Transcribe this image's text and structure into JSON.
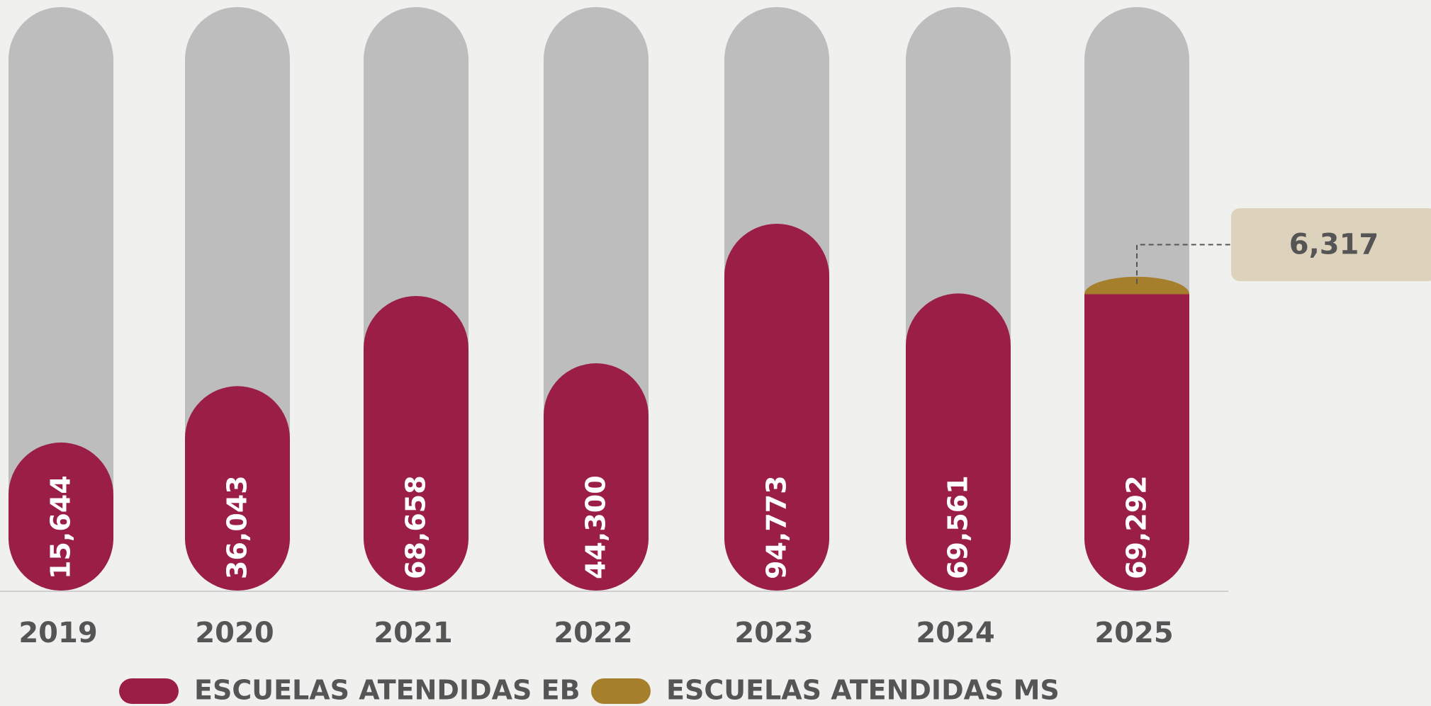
{
  "chart_data": {
    "type": "bar",
    "stacked": true,
    "categories": [
      "2019",
      "2020",
      "2021",
      "2022",
      "2023",
      "2024",
      "2025"
    ],
    "series": [
      {
        "name": "ESCUELAS ATENDIDAS EB",
        "color": "#9b1e47",
        "values": [
          15644,
          36043,
          68658,
          44300,
          94773,
          69561,
          69292
        ],
        "value_labels": [
          "15,644",
          "36,043",
          "68,658",
          "44,300",
          "94,773",
          "69,561",
          "69,292"
        ]
      },
      {
        "name": "ESCUELAS ATENDIDAS MS",
        "color": "#a57f2c",
        "values": [
          null,
          null,
          null,
          null,
          null,
          null,
          6317
        ],
        "value_labels": [
          null,
          null,
          null,
          null,
          null,
          null,
          "6,317"
        ]
      }
    ]
  }
}
